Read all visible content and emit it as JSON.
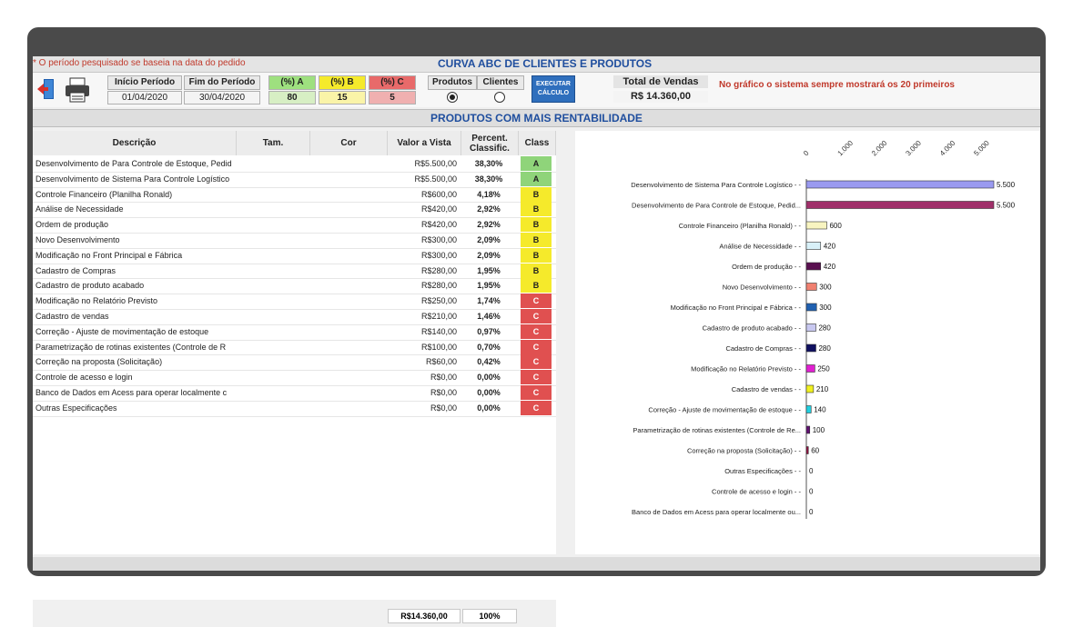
{
  "header": {
    "note": "* O período pesquisado se baseia na data do pedido",
    "title": "CURVA ABC DE CLIENTES E PRODUTOS",
    "chart_note": "No gráfico o sistema sempre mostrará os 20 primeiros"
  },
  "period": {
    "start_label": "Início Período",
    "end_label": "Fim do Período",
    "start_value": "01/04/2020",
    "end_value": "30/04/2020"
  },
  "abc": {
    "a_label": "(%) A",
    "a_value": "80",
    "b_label": "(%) B",
    "b_value": "15",
    "c_label": "(%) C",
    "c_value": "5"
  },
  "mode": {
    "produtos_label": "Produtos",
    "clientes_label": "Clientes",
    "selected": "Produtos"
  },
  "execute_button": {
    "line1": "EXECUTAR",
    "line2": "CÁLCULO"
  },
  "total": {
    "label": "Total de Vendas",
    "value": "R$ 14.360,00"
  },
  "section_title": "PRODUTOS COM MAIS RENTABILIDADE",
  "table": {
    "columns": [
      "Descrição",
      "Tam.",
      "Cor",
      "Valor a Vista",
      "Percent. Classific.",
      "Class"
    ],
    "rows": [
      {
        "desc": "Desenvolvimento de Para Controle de Estoque, Pedid",
        "valor": "R$5.500,00",
        "pct": "38,30%",
        "cls": "A"
      },
      {
        "desc": "Desenvolvimento de Sistema Para Controle Logístico",
        "valor": "R$5.500,00",
        "pct": "38,30%",
        "cls": "A"
      },
      {
        "desc": "Controle Financeiro (Planilha Ronald)",
        "valor": "R$600,00",
        "pct": "4,18%",
        "cls": "B"
      },
      {
        "desc": "Análise de Necessidade",
        "valor": "R$420,00",
        "pct": "2,92%",
        "cls": "B"
      },
      {
        "desc": "Ordem de produção",
        "valor": "R$420,00",
        "pct": "2,92%",
        "cls": "B"
      },
      {
        "desc": "Novo Desenvolvimento",
        "valor": "R$300,00",
        "pct": "2,09%",
        "cls": "B"
      },
      {
        "desc": "Modificação no Front Principal e Fábrica",
        "valor": "R$300,00",
        "pct": "2,09%",
        "cls": "B"
      },
      {
        "desc": "Cadastro de Compras",
        "valor": "R$280,00",
        "pct": "1,95%",
        "cls": "B"
      },
      {
        "desc": "Cadastro de produto acabado",
        "valor": "R$280,00",
        "pct": "1,95%",
        "cls": "B"
      },
      {
        "desc": "Modificação no Relatório Previsto",
        "valor": "R$250,00",
        "pct": "1,74%",
        "cls": "C"
      },
      {
        "desc": "Cadastro de vendas",
        "valor": "R$210,00",
        "pct": "1,46%",
        "cls": "C"
      },
      {
        "desc": "Correção - Ajuste de movimentação de estoque",
        "valor": "R$140,00",
        "pct": "0,97%",
        "cls": "C"
      },
      {
        "desc": "Parametrização de rotinas existentes (Controle de R",
        "valor": "R$100,00",
        "pct": "0,70%",
        "cls": "C"
      },
      {
        "desc": "Correção na proposta (Solicitação)",
        "valor": "R$60,00",
        "pct": "0,42%",
        "cls": "C"
      },
      {
        "desc": "Controle de acesso e login",
        "valor": "R$0,00",
        "pct": "0,00%",
        "cls": "C"
      },
      {
        "desc": "Banco de Dados em Acess para operar localmente c",
        "valor": "R$0,00",
        "pct": "0,00%",
        "cls": "C"
      },
      {
        "desc": "Outras Especificações",
        "valor": "R$0,00",
        "pct": "0,00%",
        "cls": "C"
      }
    ],
    "total_value": "R$14.360,00",
    "total_pct": "100%"
  },
  "colors": {
    "class_a": "#8fd47a",
    "class_b": "#f5ea2b",
    "class_c": "#e05050",
    "title_blue": "#1f4e9e"
  },
  "chart_data": {
    "type": "bar",
    "orientation": "horizontal",
    "categories": [
      "Desenvolvimento de Sistema Para Controle Logístico - -",
      "Desenvolvimento de Para Controle de Estoque, Pedid...",
      "Controle Financeiro (Planilha Ronald) - -",
      "Análise de Necessidade - -",
      "Ordem de produção - -",
      "Novo Desenvolvimento - -",
      "Modificação no Front Principal e Fábrica - -",
      "Cadastro de produto acabado - -",
      "Cadastro de Compras - -",
      "Modificação no Relatório Previsto - -",
      "Cadastro de vendas - -",
      "Correção - Ajuste de movimentação de estoque - -",
      "Parametrização de rotinas existentes (Controle de Re...",
      "Correção na proposta (Solicitação) - -",
      "Outras Especificações - -",
      "Controle de acesso e login - -",
      "Banco de Dados em Acess para operar localmente ou..."
    ],
    "values": [
      5500,
      5500,
      600,
      420,
      420,
      300,
      300,
      280,
      280,
      250,
      210,
      140,
      100,
      60,
      0,
      0,
      0
    ],
    "value_labels": [
      "5.500",
      "5.500",
      "600",
      "420",
      "420",
      "300",
      "300",
      "280",
      "280",
      "250",
      "210",
      "140",
      "100",
      "60",
      "0",
      "0",
      "0"
    ],
    "bar_colors": [
      "#9a9af0",
      "#a0306a",
      "#f8f4c0",
      "#d8f0f8",
      "#5a1050",
      "#f08070",
      "#2060b0",
      "#c8c8f0",
      "#101060",
      "#e020d0",
      "#f0f020",
      "#20d0e0",
      "#601070",
      "#901040",
      "#9090e0",
      "#9090e0",
      "#9090e0"
    ],
    "xticks": [
      "0",
      "1.000",
      "2.000",
      "3.000",
      "4.000",
      "5.000"
    ],
    "xlim": [
      0,
      5500
    ],
    "title": "",
    "xlabel": "",
    "ylabel": ""
  }
}
